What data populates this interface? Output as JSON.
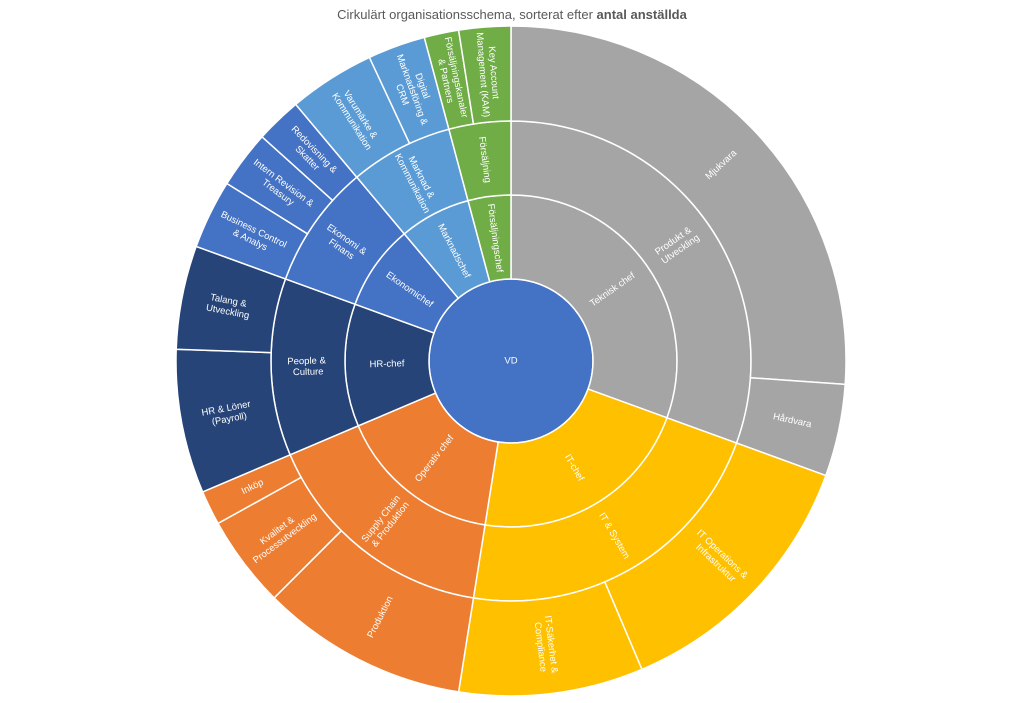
{
  "chart_data": {
    "type": "sunburst",
    "title": "Cirkulärt organisationsschema, sorterat efter",
    "title_emphasis": "antal anställda",
    "root": {
      "name": "VD",
      "color": "#4472c4",
      "children": [
        {
          "name": "Teknisk chef",
          "color": "#a5a5a5",
          "children": [
            {
              "name": "Produkt & Utveckling",
              "children": [
                {
                  "name": "Mjukvara",
                  "value": 94
                },
                {
                  "name": "Hårdvara",
                  "value": 16
                }
              ]
            }
          ]
        },
        {
          "name": "IT-chef",
          "color": "#ffc000",
          "children": [
            {
              "name": "IT & System",
              "children": [
                {
                  "name": "IT Operations & Infrastruktur",
                  "value": 47
                },
                {
                  "name": "IT-Säkerhet & Compliance",
                  "value": 32
                }
              ]
            }
          ]
        },
        {
          "name": "Operativ chef",
          "color": "#ed7d31",
          "children": [
            {
              "name": "Supply Chain & Produktion",
              "children": [
                {
                  "name": "Produktion",
                  "value": 36
                },
                {
                  "name": "Kvalitet & Processutveckling",
                  "value": 16
                },
                {
                  "name": "Inköp",
                  "value": 6
                }
              ]
            }
          ]
        },
        {
          "name": "HR-chef",
          "color": "#264478",
          "children": [
            {
              "name": "People & Culture",
              "children": [
                {
                  "name": "HR & Löner (Payroll)",
                  "value": 25
                },
                {
                  "name": "Talang & Utveckling",
                  "value": 18
                }
              ]
            }
          ]
        },
        {
          "name": "Ekonomichef",
          "color": "#4472c4",
          "children": [
            {
              "name": "Ekonomi & Finans",
              "children": [
                {
                  "name": "Business Control & Analys",
                  "value": 12
                },
                {
                  "name": "Intern Revision & Treasury",
                  "value": 10
                },
                {
                  "name": "Redovisning & Skatter",
                  "value": 8
                }
              ]
            }
          ]
        },
        {
          "name": "Marknadschef",
          "color": "#5b9bd5",
          "children": [
            {
              "name": "Marknad & Kommunikation",
              "children": [
                {
                  "name": "Varumärke & Kommunikation",
                  "value": 15
                },
                {
                  "name": "Digital Marknadsföring & CRM",
                  "value": 10
                }
              ]
            }
          ]
        },
        {
          "name": "Försäljningschef",
          "color": "#70ad47",
          "children": [
            {
              "name": "Försäljning",
              "children": [
                {
                  "name": "Försäljningskanaler & Partners",
                  "value": 6
                },
                {
                  "name": "Key Account Management (KAM)",
                  "value": 9
                }
              ]
            }
          ]
        }
      ]
    }
  }
}
